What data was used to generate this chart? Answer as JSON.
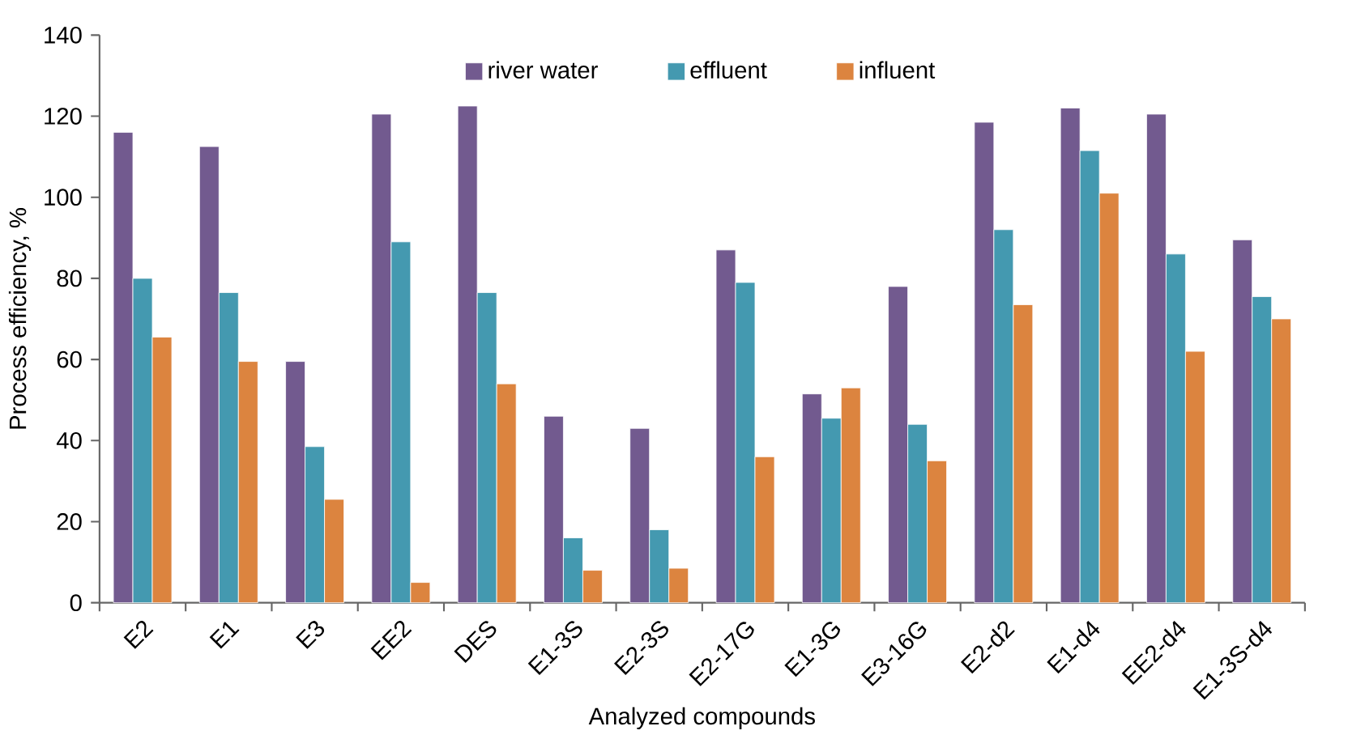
{
  "chart_data": {
    "type": "bar",
    "xlabel": "Analyzed compounds",
    "ylabel": "Process efficiency, %",
    "categories": [
      "E2",
      "E1",
      "E3",
      "EE2",
      "DES",
      "E1-3S",
      "E2-3S",
      "E2-17G",
      "E1-3G",
      "E3-16G",
      "E2-d2",
      "E1-d4",
      "EE2-d4",
      "E1-3S-d4"
    ],
    "series": [
      {
        "name": "river water",
        "color": "#725a8f",
        "values": [
          116,
          112.5,
          59.5,
          120.5,
          122.5,
          46,
          43,
          87,
          51.5,
          78,
          118.5,
          122,
          120.5,
          89.5
        ]
      },
      {
        "name": "effluent",
        "color": "#4499b0",
        "values": [
          80,
          76.5,
          38.5,
          89,
          76.5,
          16,
          18,
          79,
          45.5,
          44,
          92,
          111.5,
          86,
          75.5
        ]
      },
      {
        "name": "influent",
        "color": "#dc843f",
        "values": [
          65.5,
          59.5,
          25.5,
          5,
          54,
          8,
          8.5,
          36,
          53,
          35,
          73.5,
          101,
          62,
          70
        ]
      }
    ],
    "ylim": [
      0,
      140
    ],
    "yticks": [
      0,
      20,
      40,
      60,
      80,
      100,
      120,
      140
    ],
    "grid": false,
    "legend": "top"
  }
}
